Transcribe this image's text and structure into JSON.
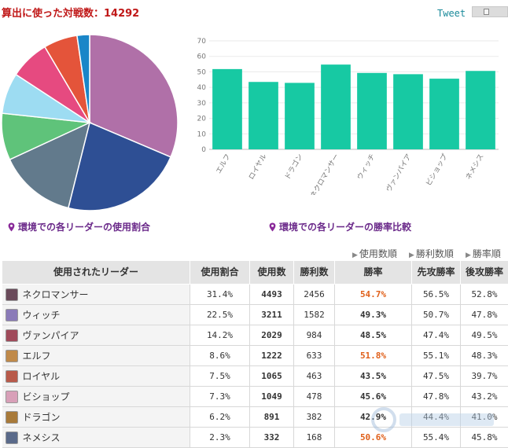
{
  "header": {
    "title": "算出に使った対戦数：14292",
    "tweet_label": "Tweet"
  },
  "captions": {
    "usage": "環境での各リーダーの使用割合",
    "winrate": "環境での各リーダーの勝率比較"
  },
  "sort_links": [
    "使用数順",
    "勝利数順",
    "勝率順"
  ],
  "chart_data": [
    {
      "type": "pie",
      "categories": [
        "ネクロマンサー",
        "ウィッチ",
        "ヴァンパイア",
        "エルフ",
        "ロイヤル",
        "ビショップ",
        "ドラゴン",
        "ネメシス"
      ],
      "values": [
        31.4,
        22.5,
        14.2,
        8.6,
        7.5,
        7.3,
        6.2,
        2.3
      ],
      "colors": [
        "#b070a8",
        "#2e4f94",
        "#627a8c",
        "#5fc37a",
        "#9ddcf2",
        "#e64a80",
        "#e4543a",
        "#1a86c8"
      ]
    },
    {
      "type": "bar",
      "categories": [
        "エルフ",
        "ロイヤル",
        "ドラゴン",
        "ネクロマンサー",
        "ウィッチ",
        "ヴァンパイア",
        "ビショップ",
        "ネメシス"
      ],
      "values": [
        51.8,
        43.5,
        42.9,
        54.7,
        49.3,
        48.5,
        45.6,
        50.6
      ],
      "ylim": [
        0,
        70
      ],
      "yticks": [
        0,
        10,
        20,
        30,
        40,
        50,
        60,
        70
      ],
      "color": "#17c9a3",
      "grid": true
    }
  ],
  "table": {
    "headers": [
      "使用されたリーダー",
      "使用割合",
      "使用数",
      "勝利数",
      "勝率",
      "先攻勝率",
      "後攻勝率"
    ],
    "rows": [
      {
        "name": "ネクロマンサー",
        "share": "31.4%",
        "count": "4493",
        "wins": "2456",
        "rate": "54.7%",
        "first": "56.5%",
        "second": "52.8%",
        "hi": true,
        "avatar": "#6a4a5a"
      },
      {
        "name": "ウィッチ",
        "share": "22.5%",
        "count": "3211",
        "wins": "1582",
        "rate": "49.3%",
        "first": "50.7%",
        "second": "47.8%",
        "hi": false,
        "avatar": "#8a7ab8"
      },
      {
        "name": "ヴァンパイア",
        "share": "14.2%",
        "count": "2029",
        "wins": "984",
        "rate": "48.5%",
        "first": "47.4%",
        "second": "49.5%",
        "hi": false,
        "avatar": "#a04a5a"
      },
      {
        "name": "エルフ",
        "share": "8.6%",
        "count": "1222",
        "wins": "633",
        "rate": "51.8%",
        "first": "55.1%",
        "second": "48.3%",
        "hi": true,
        "avatar": "#c08a4a"
      },
      {
        "name": "ロイヤル",
        "share": "7.5%",
        "count": "1065",
        "wins": "463",
        "rate": "43.5%",
        "first": "47.5%",
        "second": "39.7%",
        "hi": false,
        "avatar": "#b85a4a"
      },
      {
        "name": "ビショップ",
        "share": "7.3%",
        "count": "1049",
        "wins": "478",
        "rate": "45.6%",
        "first": "47.8%",
        "second": "43.2%",
        "hi": false,
        "avatar": "#d8a0b8"
      },
      {
        "name": "ドラゴン",
        "share": "6.2%",
        "count": "891",
        "wins": "382",
        "rate": "42.9%",
        "first": "44.4%",
        "second": "41.0%",
        "hi": false,
        "avatar": "#a87a3a"
      },
      {
        "name": "ネメシス",
        "share": "2.3%",
        "count": "332",
        "wins": "168",
        "rate": "50.6%",
        "first": "55.4%",
        "second": "45.8%",
        "hi": true,
        "avatar": "#5a6a8a"
      }
    ]
  }
}
